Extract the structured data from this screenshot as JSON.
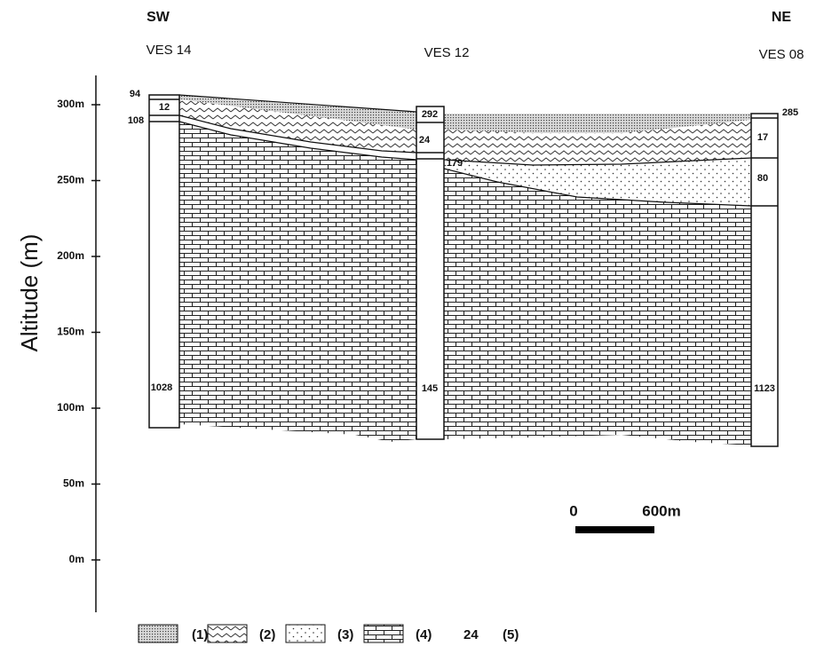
{
  "header": {
    "left_direction": "SW",
    "right_direction": "NE"
  },
  "y_axis": {
    "label": "Altitude (m)",
    "ticks": [
      "300m",
      "250m",
      "200m",
      "150m",
      "100m",
      "50m",
      "0m"
    ]
  },
  "soundings": [
    {
      "name": "VES 14",
      "layers": [
        94,
        12,
        108,
        1028
      ]
    },
    {
      "name": "VES 12",
      "layers": [
        292,
        24,
        179,
        145
      ]
    },
    {
      "name": "VES 08",
      "layers": [
        285,
        17,
        80,
        1123
      ]
    }
  ],
  "scale_bar": {
    "start": "0",
    "end": "600m"
  },
  "legend": [
    {
      "label": "(1)"
    },
    {
      "label": "(2)"
    },
    {
      "label": "(3)"
    },
    {
      "label": "(4)"
    },
    {
      "sample": "24",
      "label": "(5)"
    }
  ]
}
